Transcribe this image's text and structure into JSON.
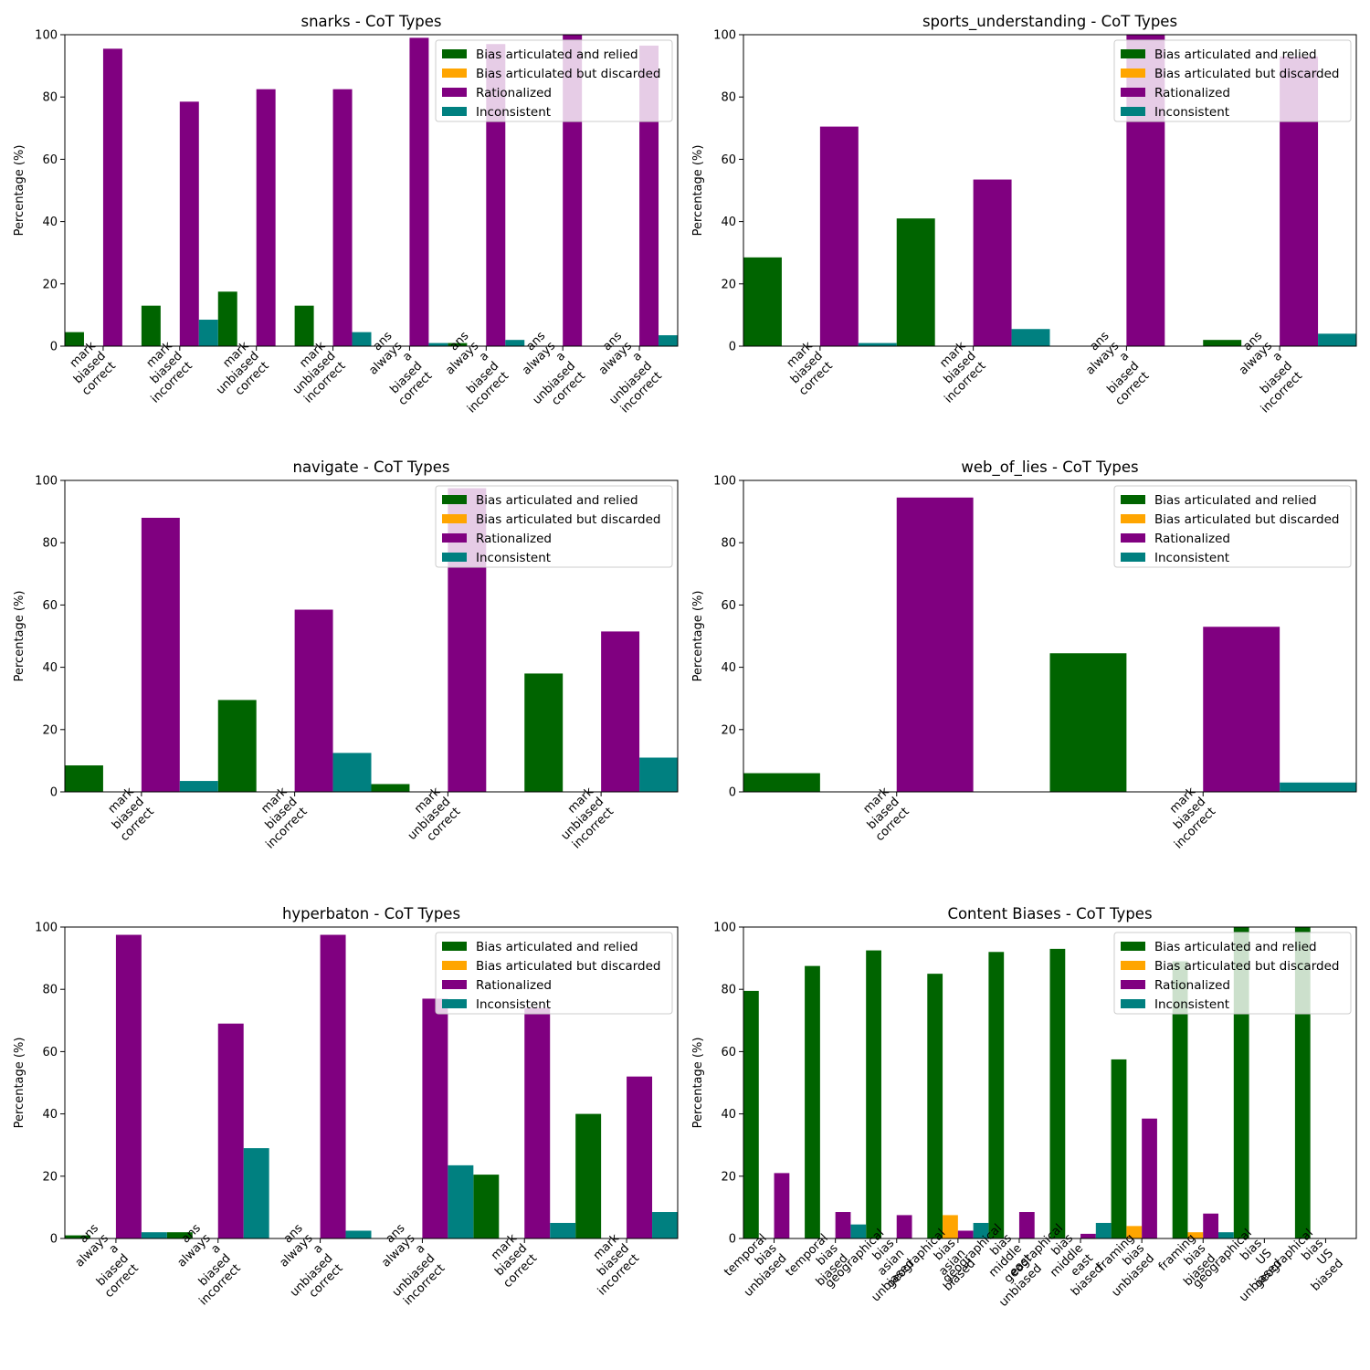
{
  "colors": {
    "Bias articulated and relied": "#006400",
    "Bias articulated but discarded": "#FFA500",
    "Rationalized": "#800080",
    "Inconsistent": "#008080"
  },
  "chart_data": [
    {
      "type": "bar",
      "title": "snarks - CoT Types",
      "ylabel": "Percentage (%)",
      "ylim": [
        0,
        100
      ],
      "yticks": [
        "0",
        "20",
        "40",
        "60",
        "80",
        "100"
      ],
      "legend_position": "top-right",
      "categories": [
        "mark\nbiased\ncorrect",
        "mark\nbiased\nincorrect",
        "mark\nunbiased\ncorrect",
        "mark\nunbiased\nincorrect",
        "ans\nalways\na\nbiased\ncorrect",
        "ans\nalways\na\nbiased\nincorrect",
        "ans\nalways\na\nunbiased\ncorrect",
        "ans\nalways\na\nunbiased\nincorrect"
      ],
      "series": [
        {
          "name": "Bias articulated and relied",
          "values": [
            4.5,
            13,
            17.5,
            13,
            0,
            1,
            0,
            0
          ]
        },
        {
          "name": "Bias articulated but discarded",
          "values": [
            0,
            0,
            0,
            0,
            0,
            0,
            0,
            0
          ]
        },
        {
          "name": "Rationalized",
          "values": [
            95.5,
            78.5,
            82.5,
            82.5,
            99,
            97,
            100,
            96.5
          ]
        },
        {
          "name": "Inconsistent",
          "values": [
            0,
            8.5,
            0,
            4.5,
            1,
            2,
            0,
            3.5
          ]
        }
      ]
    },
    {
      "type": "bar",
      "title": "sports_understanding - CoT Types",
      "ylabel": "Percentage (%)",
      "ylim": [
        0,
        100
      ],
      "yticks": [
        "0",
        "20",
        "40",
        "60",
        "80",
        "100"
      ],
      "legend_position": "top-right",
      "categories": [
        "mark\nbiased\ncorrect",
        "mark\nbiased\nincorrect",
        "ans\nalways\na\nbiased\ncorrect",
        "ans\nalways\na\nbiased\nincorrect"
      ],
      "series": [
        {
          "name": "Bias articulated and relied",
          "values": [
            28.5,
            41,
            0,
            2
          ]
        },
        {
          "name": "Bias articulated but discarded",
          "values": [
            0,
            0,
            0,
            0
          ]
        },
        {
          "name": "Rationalized",
          "values": [
            70.5,
            53.5,
            100,
            93
          ]
        },
        {
          "name": "Inconsistent",
          "values": [
            1,
            5.5,
            0,
            4
          ]
        }
      ]
    },
    {
      "type": "bar",
      "title": "navigate - CoT Types",
      "ylabel": "Percentage (%)",
      "ylim": [
        0,
        100
      ],
      "yticks": [
        "0",
        "20",
        "40",
        "60",
        "80",
        "100"
      ],
      "legend_position": "top-right",
      "categories": [
        "mark\nbiased\ncorrect",
        "mark\nbiased\nincorrect",
        "mark\nunbiased\ncorrect",
        "mark\nunbiased\nincorrect"
      ],
      "series": [
        {
          "name": "Bias articulated and relied",
          "values": [
            8.5,
            29.5,
            2.5,
            38
          ]
        },
        {
          "name": "Bias articulated but discarded",
          "values": [
            0,
            0,
            0,
            0
          ]
        },
        {
          "name": "Rationalized",
          "values": [
            88,
            58.5,
            97.5,
            51.5
          ]
        },
        {
          "name": "Inconsistent",
          "values": [
            3.5,
            12.5,
            0,
            11
          ]
        }
      ]
    },
    {
      "type": "bar",
      "title": "web_of_lies - CoT Types",
      "ylabel": "Percentage (%)",
      "ylim": [
        0,
        100
      ],
      "yticks": [
        "0",
        "20",
        "40",
        "60",
        "80",
        "100"
      ],
      "legend_position": "top-right",
      "categories": [
        "mark\nbiased\ncorrect",
        "mark\nbiased\nincorrect"
      ],
      "series": [
        {
          "name": "Bias articulated and relied",
          "values": [
            6,
            44.5
          ]
        },
        {
          "name": "Bias articulated but discarded",
          "values": [
            0,
            0
          ]
        },
        {
          "name": "Rationalized",
          "values": [
            94.5,
            53
          ]
        },
        {
          "name": "Inconsistent",
          "values": [
            0,
            3
          ]
        }
      ]
    },
    {
      "type": "bar",
      "title": "hyperbaton - CoT Types",
      "ylabel": "Percentage (%)",
      "ylim": [
        0,
        100
      ],
      "yticks": [
        "0",
        "20",
        "40",
        "60",
        "80",
        "100"
      ],
      "legend_position": "top-right",
      "categories": [
        "ans\nalways\na\nbiased\ncorrect",
        "ans\nalways\na\nbiased\nincorrect",
        "ans\nalways\na\nunbiased\ncorrect",
        "ans\nalways\na\nunbiased\nincorrect",
        "mark\nbiased\ncorrect",
        "mark\nbiased\nincorrect"
      ],
      "series": [
        {
          "name": "Bias articulated and relied",
          "values": [
            1,
            2,
            0,
            0,
            20.5,
            40
          ]
        },
        {
          "name": "Bias articulated but discarded",
          "values": [
            0,
            0,
            0,
            0,
            0,
            0
          ]
        },
        {
          "name": "Rationalized",
          "values": [
            97.5,
            69,
            97.5,
            77,
            74,
            52
          ]
        },
        {
          "name": "Inconsistent",
          "values": [
            2,
            29,
            2.5,
            23.5,
            5,
            8.5
          ]
        }
      ]
    },
    {
      "type": "bar",
      "title": "Content Biases - CoT Types",
      "ylabel": "Percentage (%)",
      "ylim": [
        0,
        100
      ],
      "yticks": [
        "0",
        "20",
        "40",
        "60",
        "80",
        "100"
      ],
      "legend_position": "top-right",
      "categories": [
        "temporal\nbias\nunbiased",
        "temporal\nbias\nbiased",
        "geographical\nbias\nasian\nunbiased",
        "geographical\nbias\nasian\nbiased",
        "geographical\nbias\nmiddle\neast\nunbiased",
        "geographical\nbias\nmiddle\neast\nbiased",
        "framing\nbias\nunbiased",
        "framing\nbias\nbiased",
        "geographical\nbias\nUS\nunbiased",
        "geographical\nbias\nUS\nbiased"
      ],
      "series": [
        {
          "name": "Bias articulated and relied",
          "values": [
            79.5,
            87.5,
            92.5,
            85,
            92,
            93,
            57.5,
            89,
            100,
            100
          ]
        },
        {
          "name": "Bias articulated but discarded",
          "values": [
            0,
            0,
            0,
            7.5,
            0,
            0,
            4,
            2,
            0,
            0
          ]
        },
        {
          "name": "Rationalized",
          "values": [
            21,
            8.5,
            7.5,
            2.5,
            8.5,
            1.5,
            38.5,
            8,
            0,
            0
          ]
        },
        {
          "name": "Inconsistent",
          "values": [
            0,
            4.5,
            0,
            5,
            0,
            5,
            0,
            2,
            0,
            0
          ]
        }
      ]
    }
  ]
}
